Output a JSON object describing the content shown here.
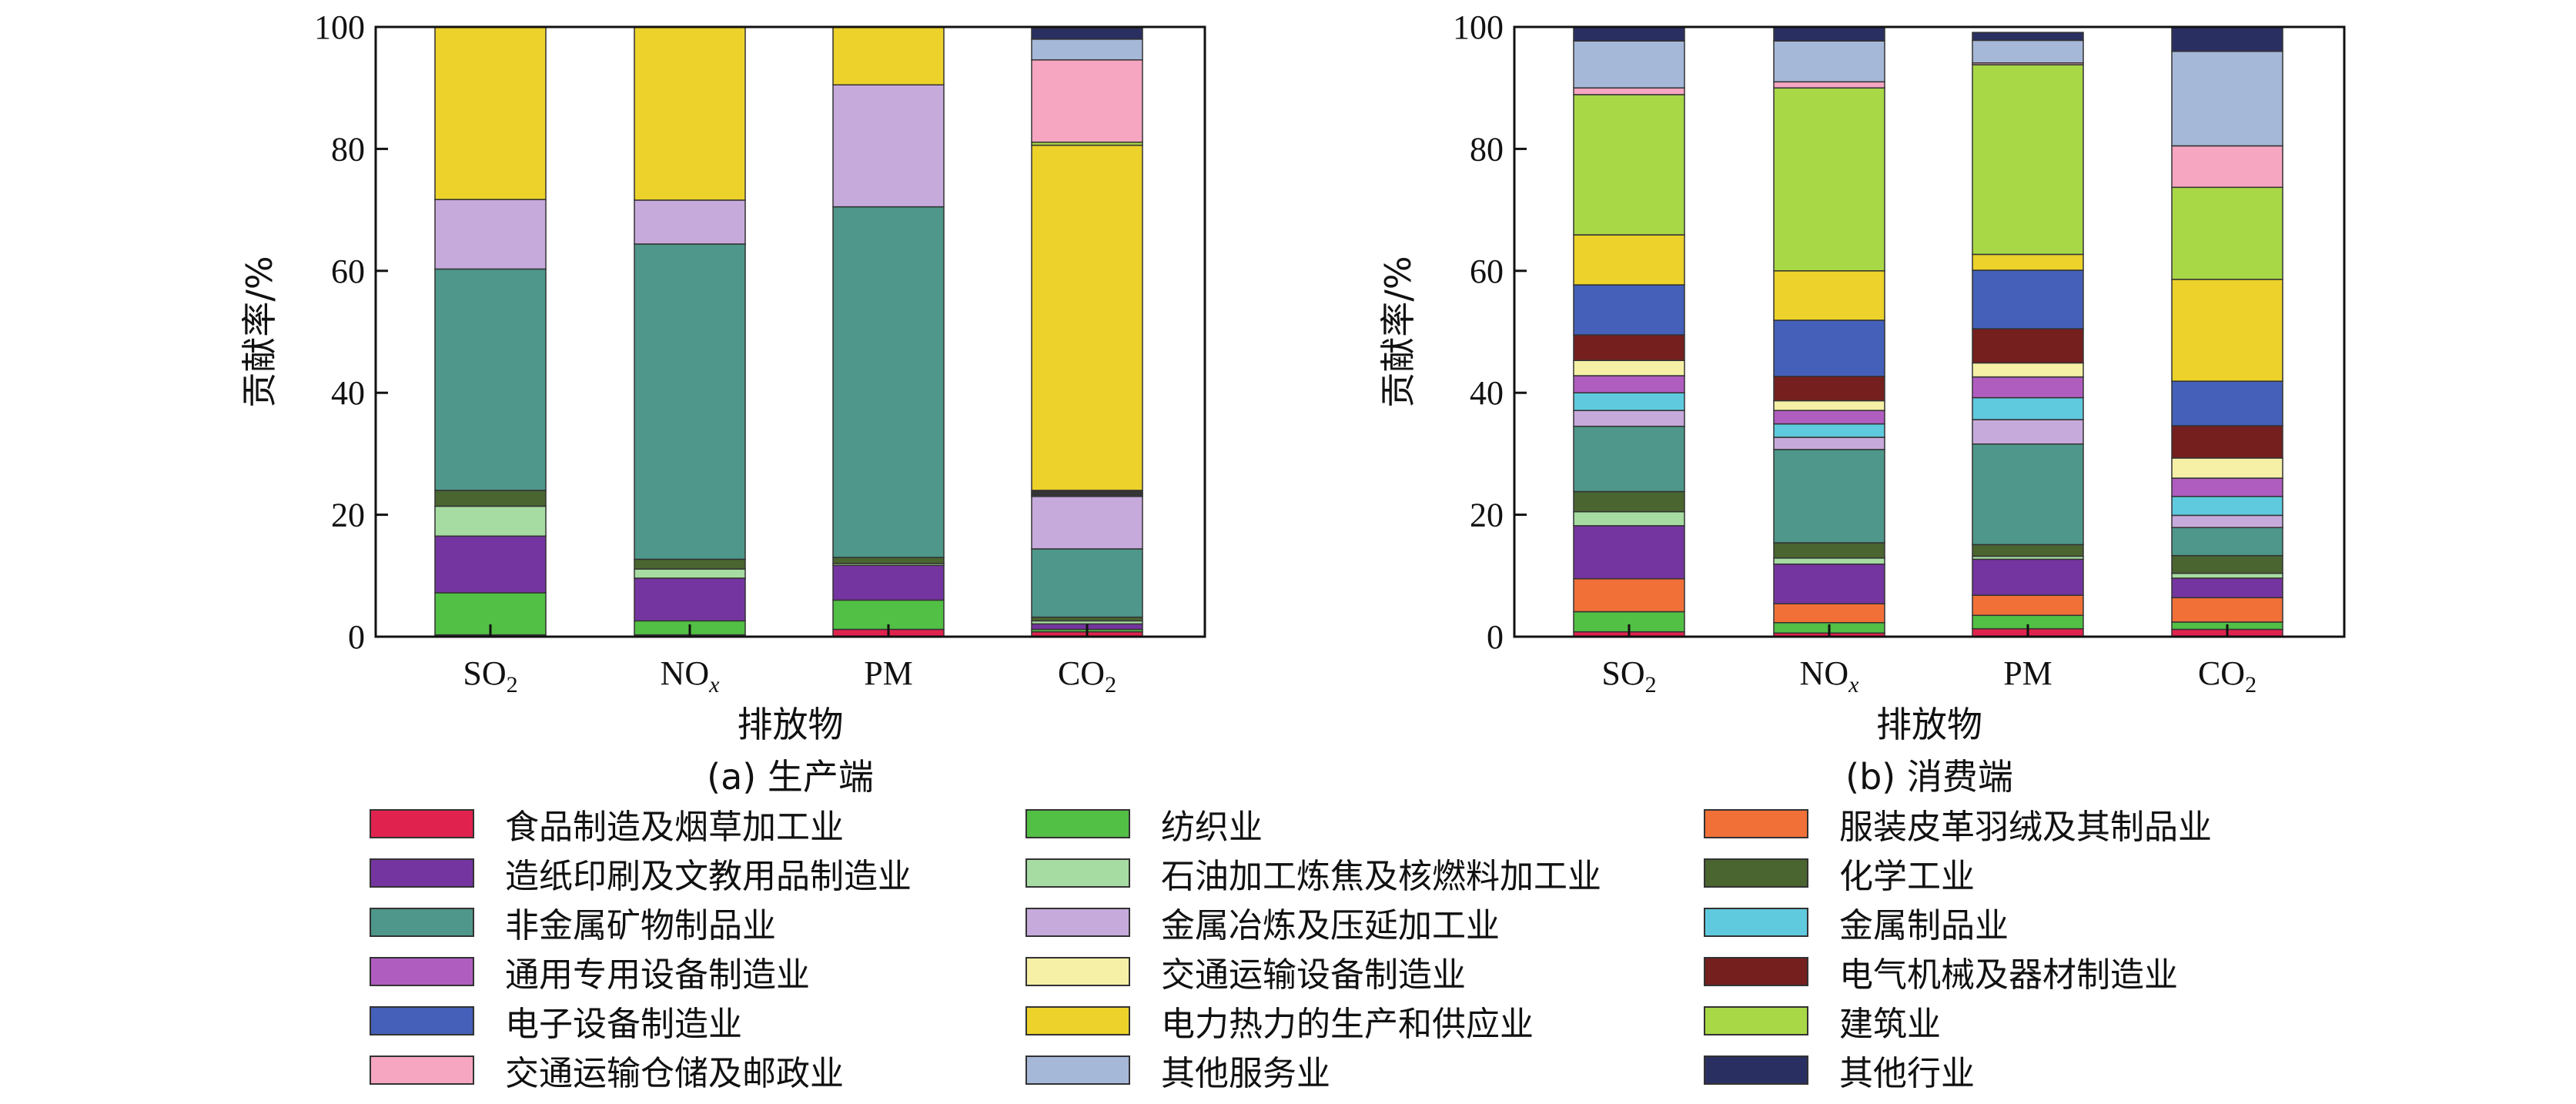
{
  "chart_data": [
    {
      "type": "bar",
      "stacked": true,
      "caption": "(a) 生产端",
      "xlabel": "排放物",
      "ylabel": "贡献率/%",
      "ylim": [
        0,
        100
      ],
      "yticks": [
        0,
        20,
        40,
        60,
        80,
        100
      ],
      "categories": [
        {
          "base": "SO",
          "sub": "2",
          "sub_style": "normal"
        },
        {
          "base": "NO",
          "sub": "x",
          "sub_style": "italic"
        },
        {
          "base": "PM",
          "sub": "",
          "sub_style": "normal"
        },
        {
          "base": "CO",
          "sub": "2",
          "sub_style": "normal"
        }
      ],
      "series": [
        {
          "name": "食品制造及烟草加工业",
          "values": [
            0.3,
            0.3,
            1.2,
            0.8
          ]
        },
        {
          "name": "纺织业",
          "values": [
            6.9,
            2.3,
            4.8,
            0.4
          ]
        },
        {
          "name": "服装皮革羽绒及其制品业",
          "values": [
            0.0,
            0.0,
            0.0,
            0.0
          ]
        },
        {
          "name": "造纸印刷及文教用品制造业",
          "values": [
            9.3,
            7.0,
            5.7,
            0.9
          ]
        },
        {
          "name": "石油加工炼焦及核燃料加工业",
          "values": [
            4.9,
            1.5,
            0.3,
            0.5
          ]
        },
        {
          "name": "化学工业",
          "values": [
            2.6,
            1.6,
            1.0,
            0.6
          ]
        },
        {
          "name": "非金属矿物制品业",
          "values": [
            36.3,
            51.7,
            57.5,
            11.2
          ]
        },
        {
          "name": "金属冶炼及压延加工业",
          "values": [
            11.4,
            7.2,
            20.0,
            8.6
          ]
        },
        {
          "name": "金属制品业",
          "values": [
            0.0,
            0.0,
            0.0,
            0.2
          ]
        },
        {
          "name": "通用专用设备制造业",
          "values": [
            0.0,
            0.0,
            0.0,
            0.2
          ]
        },
        {
          "name": "交通运输设备制造业",
          "values": [
            0.0,
            0.0,
            0.0,
            0.2
          ]
        },
        {
          "name": "电气机械及器材制造业",
          "values": [
            0.0,
            0.0,
            0.0,
            0.2
          ]
        },
        {
          "name": "电子设备制造业",
          "values": [
            0.0,
            0.0,
            0.0,
            0.2
          ]
        },
        {
          "name": "电力热力的生产和供应业",
          "values": [
            28.3,
            28.4,
            9.5,
            56.6
          ]
        },
        {
          "name": "建筑业",
          "values": [
            0.0,
            0.0,
            0.0,
            0.5
          ]
        },
        {
          "name": "交通运输仓储及邮政业",
          "values": [
            0.0,
            0.0,
            0.0,
            13.5
          ]
        },
        {
          "name": "其他服务业",
          "values": [
            0.0,
            0.0,
            0.0,
            3.4
          ]
        },
        {
          "name": "其他行业",
          "values": [
            0.0,
            0.0,
            0.0,
            1.8
          ]
        }
      ]
    },
    {
      "type": "bar",
      "stacked": true,
      "caption": "(b) 消费端",
      "xlabel": "排放物",
      "ylabel": "贡献率/%",
      "ylim": [
        0,
        100
      ],
      "yticks": [
        0,
        20,
        40,
        60,
        80,
        100
      ],
      "categories": [
        {
          "base": "SO",
          "sub": "2",
          "sub_style": "normal"
        },
        {
          "base": "NO",
          "sub": "x",
          "sub_style": "italic"
        },
        {
          "base": "PM",
          "sub": "",
          "sub_style": "normal"
        },
        {
          "base": "CO",
          "sub": "2",
          "sub_style": "normal"
        }
      ],
      "series": [
        {
          "name": "食品制造及烟草加工业",
          "values": [
            0.8,
            0.6,
            1.3,
            1.2
          ]
        },
        {
          "name": "纺织业",
          "values": [
            3.3,
            1.7,
            2.2,
            1.2
          ]
        },
        {
          "name": "服装皮革羽绒及其制品业",
          "values": [
            5.4,
            3.1,
            3.3,
            4.0
          ]
        },
        {
          "name": "造纸印刷及文教用品制造业",
          "values": [
            8.7,
            6.5,
            5.9,
            3.2
          ]
        },
        {
          "name": "石油加工炼焦及核燃料加工业",
          "values": [
            2.3,
            1.0,
            0.5,
            0.8
          ]
        },
        {
          "name": "化学工业",
          "values": [
            3.3,
            2.5,
            1.9,
            2.9
          ]
        },
        {
          "name": "非金属矿物制品业",
          "values": [
            10.7,
            15.3,
            16.5,
            4.6
          ]
        },
        {
          "name": "金属冶炼及压延加工业",
          "values": [
            2.6,
            2.0,
            4.0,
            2.0
          ]
        },
        {
          "name": "金属制品业",
          "values": [
            2.9,
            2.2,
            3.6,
            3.1
          ]
        },
        {
          "name": "通用专用设备制造业",
          "values": [
            2.8,
            2.2,
            3.4,
            3.0
          ]
        },
        {
          "name": "交通运输设备制造业",
          "values": [
            2.5,
            1.6,
            2.3,
            3.3
          ]
        },
        {
          "name": "电气机械及器材制造业",
          "values": [
            4.2,
            4.0,
            5.6,
            5.3
          ]
        },
        {
          "name": "电子设备制造业",
          "values": [
            8.2,
            9.2,
            9.6,
            7.3
          ]
        },
        {
          "name": "电力热力的生产和供应业",
          "values": [
            8.2,
            8.1,
            2.6,
            16.7
          ]
        },
        {
          "name": "建筑业",
          "values": [
            23.0,
            30.0,
            31.1,
            15.1
          ]
        },
        {
          "name": "交通运输仓储及邮政业",
          "values": [
            1.1,
            1.0,
            0.3,
            6.8
          ]
        },
        {
          "name": "其他服务业",
          "values": [
            7.7,
            6.7,
            3.7,
            15.5
          ]
        },
        {
          "name": "其他行业",
          "values": [
            2.3,
            2.3,
            1.3,
            4.0
          ]
        }
      ]
    }
  ],
  "colors": [
    "#e0234e",
    "#52bf45",
    "#f07038",
    "#7535a0",
    "#a6dca2",
    "#4a6530",
    "#4e978a",
    "#c7aadc",
    "#5fcade",
    "#b05dc0",
    "#f5f0a6",
    "#751f1f",
    "#4460b9",
    "#ecd22a",
    "#a9d847",
    "#f7a6c2",
    "#a6b8d8",
    "#2a2f62"
  ],
  "legend": {
    "columns": [
      [
        "食品制造及烟草加工业",
        "造纸印刷及文教用品制造业",
        "非金属矿物制品业",
        "通用专用设备制造业",
        "电子设备制造业",
        "交通运输仓储及邮政业"
      ],
      [
        "纺织业",
        "石油加工炼焦及核燃料加工业",
        "金属冶炼及压延加工业",
        "交通运输设备制造业",
        "电力热力的生产和供应业",
        "其他服务业"
      ],
      [
        "服装皮革羽绒及其制品业",
        "化学工业",
        "金属制品业",
        "电气机械及器材制造业",
        "建筑业",
        "其他行业"
      ]
    ]
  }
}
